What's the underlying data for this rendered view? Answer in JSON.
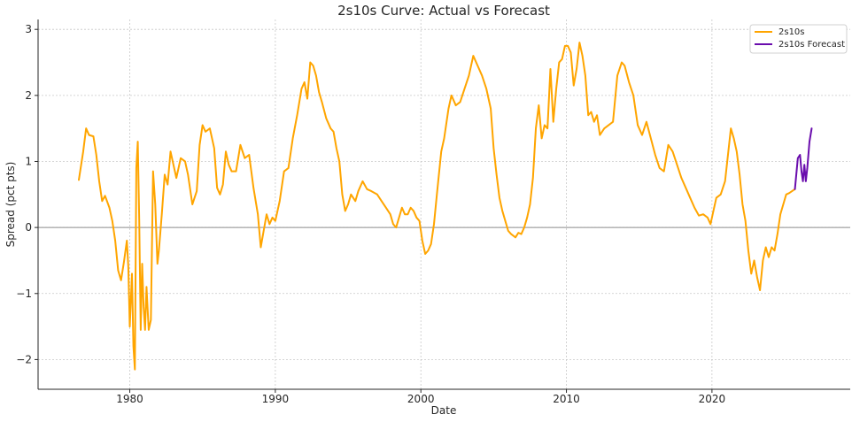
{
  "chart_data": {
    "type": "line",
    "title": "2s10s Curve: Actual vs Forecast",
    "xlabel": "Date",
    "ylabel": "Spread (pct pts)",
    "xlim": [
      1973.7,
      2029.5
    ],
    "ylim": [
      -2.45,
      3.15
    ],
    "x_ticks": [
      1980,
      1990,
      2000,
      2010,
      2020
    ],
    "y_ticks": [
      -2,
      -1,
      0,
      1,
      2,
      3
    ],
    "grid": true,
    "zero_line": 0,
    "legend_position": "top-right",
    "series": [
      {
        "name": "2s10s",
        "color": "#FFA500",
        "points": [
          [
            1976.5,
            0.72
          ],
          [
            1976.8,
            1.15
          ],
          [
            1977.0,
            1.5
          ],
          [
            1977.2,
            1.4
          ],
          [
            1977.5,
            1.38
          ],
          [
            1977.7,
            1.1
          ],
          [
            1977.9,
            0.7
          ],
          [
            1978.1,
            0.4
          ],
          [
            1978.3,
            0.48
          ],
          [
            1978.6,
            0.3
          ],
          [
            1978.8,
            0.1
          ],
          [
            1979.0,
            -0.2
          ],
          [
            1979.2,
            -0.65
          ],
          [
            1979.4,
            -0.8
          ],
          [
            1979.6,
            -0.52
          ],
          [
            1979.8,
            -0.2
          ],
          [
            1979.9,
            -0.6
          ],
          [
            1980.0,
            -1.5
          ],
          [
            1980.15,
            -0.7
          ],
          [
            1980.25,
            -1.8
          ],
          [
            1980.35,
            -2.15
          ],
          [
            1980.45,
            0.9
          ],
          [
            1980.55,
            1.3
          ],
          [
            1980.65,
            0.1
          ],
          [
            1980.75,
            -1.55
          ],
          [
            1980.85,
            -0.55
          ],
          [
            1980.95,
            -1.2
          ],
          [
            1981.05,
            -1.55
          ],
          [
            1981.15,
            -0.9
          ],
          [
            1981.3,
            -1.55
          ],
          [
            1981.45,
            -1.4
          ],
          [
            1981.6,
            0.85
          ],
          [
            1981.75,
            0.35
          ],
          [
            1981.9,
            -0.55
          ],
          [
            1982.0,
            -0.35
          ],
          [
            1982.2,
            0.2
          ],
          [
            1982.4,
            0.8
          ],
          [
            1982.6,
            0.65
          ],
          [
            1982.8,
            1.15
          ],
          [
            1983.0,
            0.95
          ],
          [
            1983.2,
            0.75
          ],
          [
            1983.5,
            1.05
          ],
          [
            1983.8,
            1.0
          ],
          [
            1984.0,
            0.8
          ],
          [
            1984.3,
            0.35
          ],
          [
            1984.6,
            0.55
          ],
          [
            1984.8,
            1.25
          ],
          [
            1985.0,
            1.55
          ],
          [
            1985.2,
            1.45
          ],
          [
            1985.5,
            1.5
          ],
          [
            1985.8,
            1.2
          ],
          [
            1986.0,
            0.6
          ],
          [
            1986.2,
            0.5
          ],
          [
            1986.4,
            0.65
          ],
          [
            1986.6,
            1.15
          ],
          [
            1986.8,
            0.95
          ],
          [
            1987.0,
            0.85
          ],
          [
            1987.3,
            0.85
          ],
          [
            1987.6,
            1.25
          ],
          [
            1987.9,
            1.05
          ],
          [
            1988.2,
            1.1
          ],
          [
            1988.5,
            0.6
          ],
          [
            1988.8,
            0.2
          ],
          [
            1989.0,
            -0.3
          ],
          [
            1989.2,
            -0.05
          ],
          [
            1989.4,
            0.2
          ],
          [
            1989.6,
            0.05
          ],
          [
            1989.8,
            0.15
          ],
          [
            1990.0,
            0.1
          ],
          [
            1990.3,
            0.4
          ],
          [
            1990.6,
            0.85
          ],
          [
            1990.9,
            0.9
          ],
          [
            1991.2,
            1.35
          ],
          [
            1991.5,
            1.7
          ],
          [
            1991.8,
            2.1
          ],
          [
            1992.0,
            2.2
          ],
          [
            1992.2,
            1.95
          ],
          [
            1992.4,
            2.5
          ],
          [
            1992.6,
            2.45
          ],
          [
            1992.8,
            2.3
          ],
          [
            1993.0,
            2.05
          ],
          [
            1993.2,
            1.9
          ],
          [
            1993.5,
            1.65
          ],
          [
            1993.8,
            1.5
          ],
          [
            1994.0,
            1.45
          ],
          [
            1994.2,
            1.2
          ],
          [
            1994.4,
            1.0
          ],
          [
            1994.6,
            0.5
          ],
          [
            1994.8,
            0.25
          ],
          [
            1995.0,
            0.35
          ],
          [
            1995.2,
            0.5
          ],
          [
            1995.5,
            0.4
          ],
          [
            1995.7,
            0.55
          ],
          [
            1996.0,
            0.7
          ],
          [
            1996.3,
            0.58
          ],
          [
            1996.6,
            0.55
          ],
          [
            1997.0,
            0.5
          ],
          [
            1997.3,
            0.4
          ],
          [
            1997.6,
            0.3
          ],
          [
            1997.9,
            0.2
          ],
          [
            1998.1,
            0.05
          ],
          [
            1998.3,
            0.0
          ],
          [
            1998.5,
            0.15
          ],
          [
            1998.7,
            0.3
          ],
          [
            1998.9,
            0.2
          ],
          [
            1999.1,
            0.2
          ],
          [
            1999.3,
            0.3
          ],
          [
            1999.5,
            0.25
          ],
          [
            1999.7,
            0.15
          ],
          [
            1999.9,
            0.1
          ],
          [
            2000.1,
            -0.2
          ],
          [
            2000.3,
            -0.4
          ],
          [
            2000.5,
            -0.35
          ],
          [
            2000.7,
            -0.25
          ],
          [
            2000.9,
            0.05
          ],
          [
            2001.1,
            0.5
          ],
          [
            2001.4,
            1.15
          ],
          [
            2001.6,
            1.35
          ],
          [
            2001.9,
            1.8
          ],
          [
            2002.1,
            2.0
          ],
          [
            2002.4,
            1.85
          ],
          [
            2002.7,
            1.9
          ],
          [
            2003.0,
            2.1
          ],
          [
            2003.3,
            2.3
          ],
          [
            2003.6,
            2.6
          ],
          [
            2003.9,
            2.45
          ],
          [
            2004.2,
            2.3
          ],
          [
            2004.5,
            2.1
          ],
          [
            2004.8,
            1.8
          ],
          [
            2005.0,
            1.2
          ],
          [
            2005.2,
            0.8
          ],
          [
            2005.4,
            0.45
          ],
          [
            2005.6,
            0.25
          ],
          [
            2005.8,
            0.1
          ],
          [
            2006.0,
            -0.05
          ],
          [
            2006.2,
            -0.1
          ],
          [
            2006.5,
            -0.15
          ],
          [
            2006.7,
            -0.08
          ],
          [
            2006.9,
            -0.1
          ],
          [
            2007.1,
            0.0
          ],
          [
            2007.3,
            0.15
          ],
          [
            2007.5,
            0.35
          ],
          [
            2007.7,
            0.75
          ],
          [
            2007.9,
            1.5
          ],
          [
            2008.1,
            1.85
          ],
          [
            2008.3,
            1.35
          ],
          [
            2008.5,
            1.55
          ],
          [
            2008.7,
            1.5
          ],
          [
            2008.9,
            2.4
          ],
          [
            2009.1,
            1.6
          ],
          [
            2009.3,
            2.1
          ],
          [
            2009.5,
            2.5
          ],
          [
            2009.7,
            2.55
          ],
          [
            2009.9,
            2.75
          ],
          [
            2010.1,
            2.75
          ],
          [
            2010.3,
            2.65
          ],
          [
            2010.5,
            2.15
          ],
          [
            2010.7,
            2.4
          ],
          [
            2010.9,
            2.8
          ],
          [
            2011.1,
            2.6
          ],
          [
            2011.3,
            2.3
          ],
          [
            2011.5,
            1.7
          ],
          [
            2011.7,
            1.75
          ],
          [
            2011.9,
            1.6
          ],
          [
            2012.1,
            1.7
          ],
          [
            2012.3,
            1.4
          ],
          [
            2012.6,
            1.5
          ],
          [
            2012.9,
            1.55
          ],
          [
            2013.2,
            1.6
          ],
          [
            2013.5,
            2.3
          ],
          [
            2013.8,
            2.5
          ],
          [
            2014.0,
            2.45
          ],
          [
            2014.3,
            2.2
          ],
          [
            2014.6,
            2.0
          ],
          [
            2014.9,
            1.55
          ],
          [
            2015.2,
            1.4
          ],
          [
            2015.5,
            1.6
          ],
          [
            2015.8,
            1.35
          ],
          [
            2016.1,
            1.1
          ],
          [
            2016.4,
            0.9
          ],
          [
            2016.7,
            0.85
          ],
          [
            2017.0,
            1.25
          ],
          [
            2017.3,
            1.15
          ],
          [
            2017.6,
            0.95
          ],
          [
            2017.9,
            0.75
          ],
          [
            2018.2,
            0.6
          ],
          [
            2018.5,
            0.45
          ],
          [
            2018.8,
            0.3
          ],
          [
            2019.1,
            0.18
          ],
          [
            2019.4,
            0.2
          ],
          [
            2019.7,
            0.15
          ],
          [
            2019.9,
            0.05
          ],
          [
            2020.1,
            0.25
          ],
          [
            2020.3,
            0.45
          ],
          [
            2020.6,
            0.5
          ],
          [
            2020.9,
            0.7
          ],
          [
            2021.1,
            1.1
          ],
          [
            2021.3,
            1.5
          ],
          [
            2021.5,
            1.35
          ],
          [
            2021.7,
            1.15
          ],
          [
            2021.9,
            0.8
          ],
          [
            2022.1,
            0.35
          ],
          [
            2022.3,
            0.1
          ],
          [
            2022.5,
            -0.35
          ],
          [
            2022.7,
            -0.7
          ],
          [
            2022.9,
            -0.5
          ],
          [
            2023.1,
            -0.75
          ],
          [
            2023.3,
            -0.95
          ],
          [
            2023.5,
            -0.5
          ],
          [
            2023.7,
            -0.3
          ],
          [
            2023.9,
            -0.45
          ],
          [
            2024.1,
            -0.3
          ],
          [
            2024.3,
            -0.35
          ],
          [
            2024.5,
            -0.1
          ],
          [
            2024.7,
            0.2
          ],
          [
            2024.9,
            0.35
          ],
          [
            2025.1,
            0.5
          ],
          [
            2025.3,
            0.52
          ],
          [
            2025.5,
            0.55
          ],
          [
            2025.7,
            0.58
          ]
        ]
      },
      {
        "name": "2s10s Forecast",
        "color": "#6A0DAD",
        "points": [
          [
            2025.7,
            0.58
          ],
          [
            2025.9,
            1.05
          ],
          [
            2026.05,
            1.1
          ],
          [
            2026.15,
            0.85
          ],
          [
            2026.25,
            0.7
          ],
          [
            2026.35,
            0.95
          ],
          [
            2026.45,
            0.7
          ],
          [
            2026.55,
            0.9
          ],
          [
            2026.7,
            1.3
          ],
          [
            2026.85,
            1.5
          ]
        ]
      }
    ]
  }
}
